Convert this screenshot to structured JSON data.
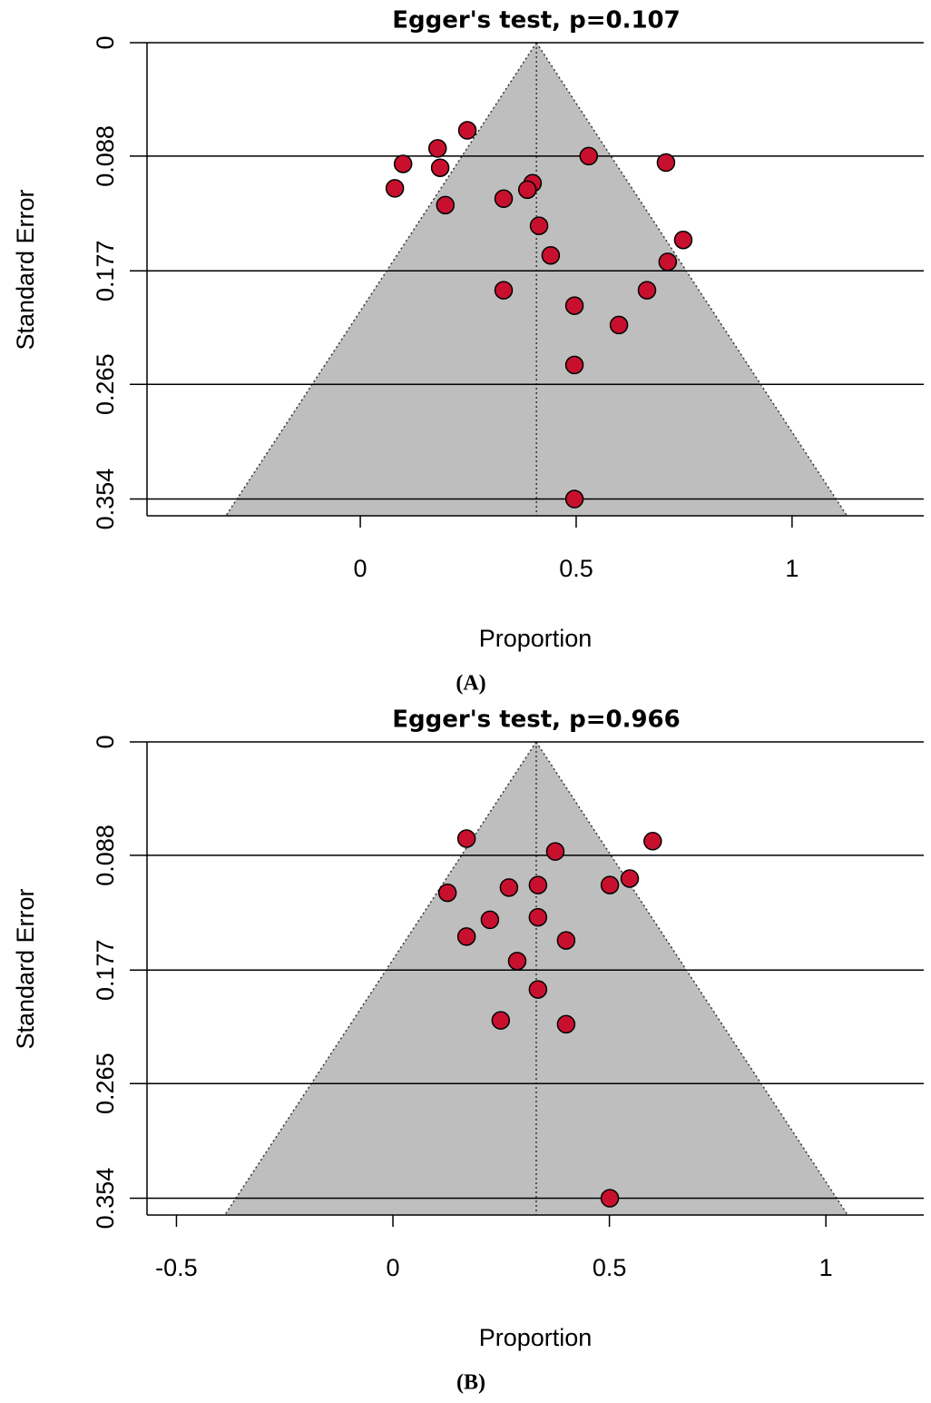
{
  "chart_data": [
    {
      "type": "funnel",
      "title": "Egger's test, p=0.107",
      "panel_label": "(A)",
      "x_label": "Proportion",
      "y_label": "Standard Error",
      "x": [
        0.248,
        0.179,
        0.529,
        0.708,
        0.099,
        0.185,
        0.399,
        0.08,
        0.387,
        0.332,
        0.197,
        0.414,
        0.748,
        0.441,
        0.712,
        0.332,
        0.664,
        0.496,
        0.599,
        0.496,
        0.496
      ],
      "values": [
        0.068,
        0.082,
        0.088,
        0.093,
        0.094,
        0.097,
        0.109,
        0.113,
        0.114,
        0.121,
        0.126,
        0.142,
        0.153,
        0.165,
        0.17,
        0.192,
        0.192,
        0.204,
        0.219,
        0.25,
        0.354
      ],
      "pooled_estimate": 0.408,
      "color": "#c8102e",
      "funnel_color": "#bebebe",
      "xlim": [
        -0.494,
        1.305
      ],
      "xticks": [
        0,
        0.5,
        1
      ],
      "ylim": [
        0,
        0.367
      ],
      "yticks": [
        0,
        0.088,
        0.177,
        0.265,
        0.354
      ],
      "y_reversed": true,
      "grid": true
    },
    {
      "type": "funnel",
      "title": "Egger's test, p=0.966",
      "panel_label": "(B)",
      "x_label": "Proportion",
      "y_label": "Standard Error",
      "x": [
        0.17,
        0.6,
        0.375,
        0.547,
        0.335,
        0.501,
        0.268,
        0.126,
        0.335,
        0.224,
        0.17,
        0.4,
        0.287,
        0.335,
        0.249,
        0.4,
        0.501
      ],
      "values": [
        0.075,
        0.077,
        0.085,
        0.106,
        0.111,
        0.111,
        0.113,
        0.117,
        0.136,
        0.138,
        0.151,
        0.154,
        0.17,
        0.192,
        0.216,
        0.219,
        0.354
      ],
      "pooled_estimate": 0.331,
      "color": "#c8102e",
      "funnel_color": "#bebebe",
      "xlim": [
        -0.568,
        1.226
      ],
      "xticks": [
        -0.5,
        0,
        0.5,
        1
      ],
      "ylim": [
        0,
        0.367
      ],
      "yticks": [
        0,
        0.088,
        0.177,
        0.265,
        0.354
      ],
      "y_reversed": true,
      "grid": true
    }
  ]
}
